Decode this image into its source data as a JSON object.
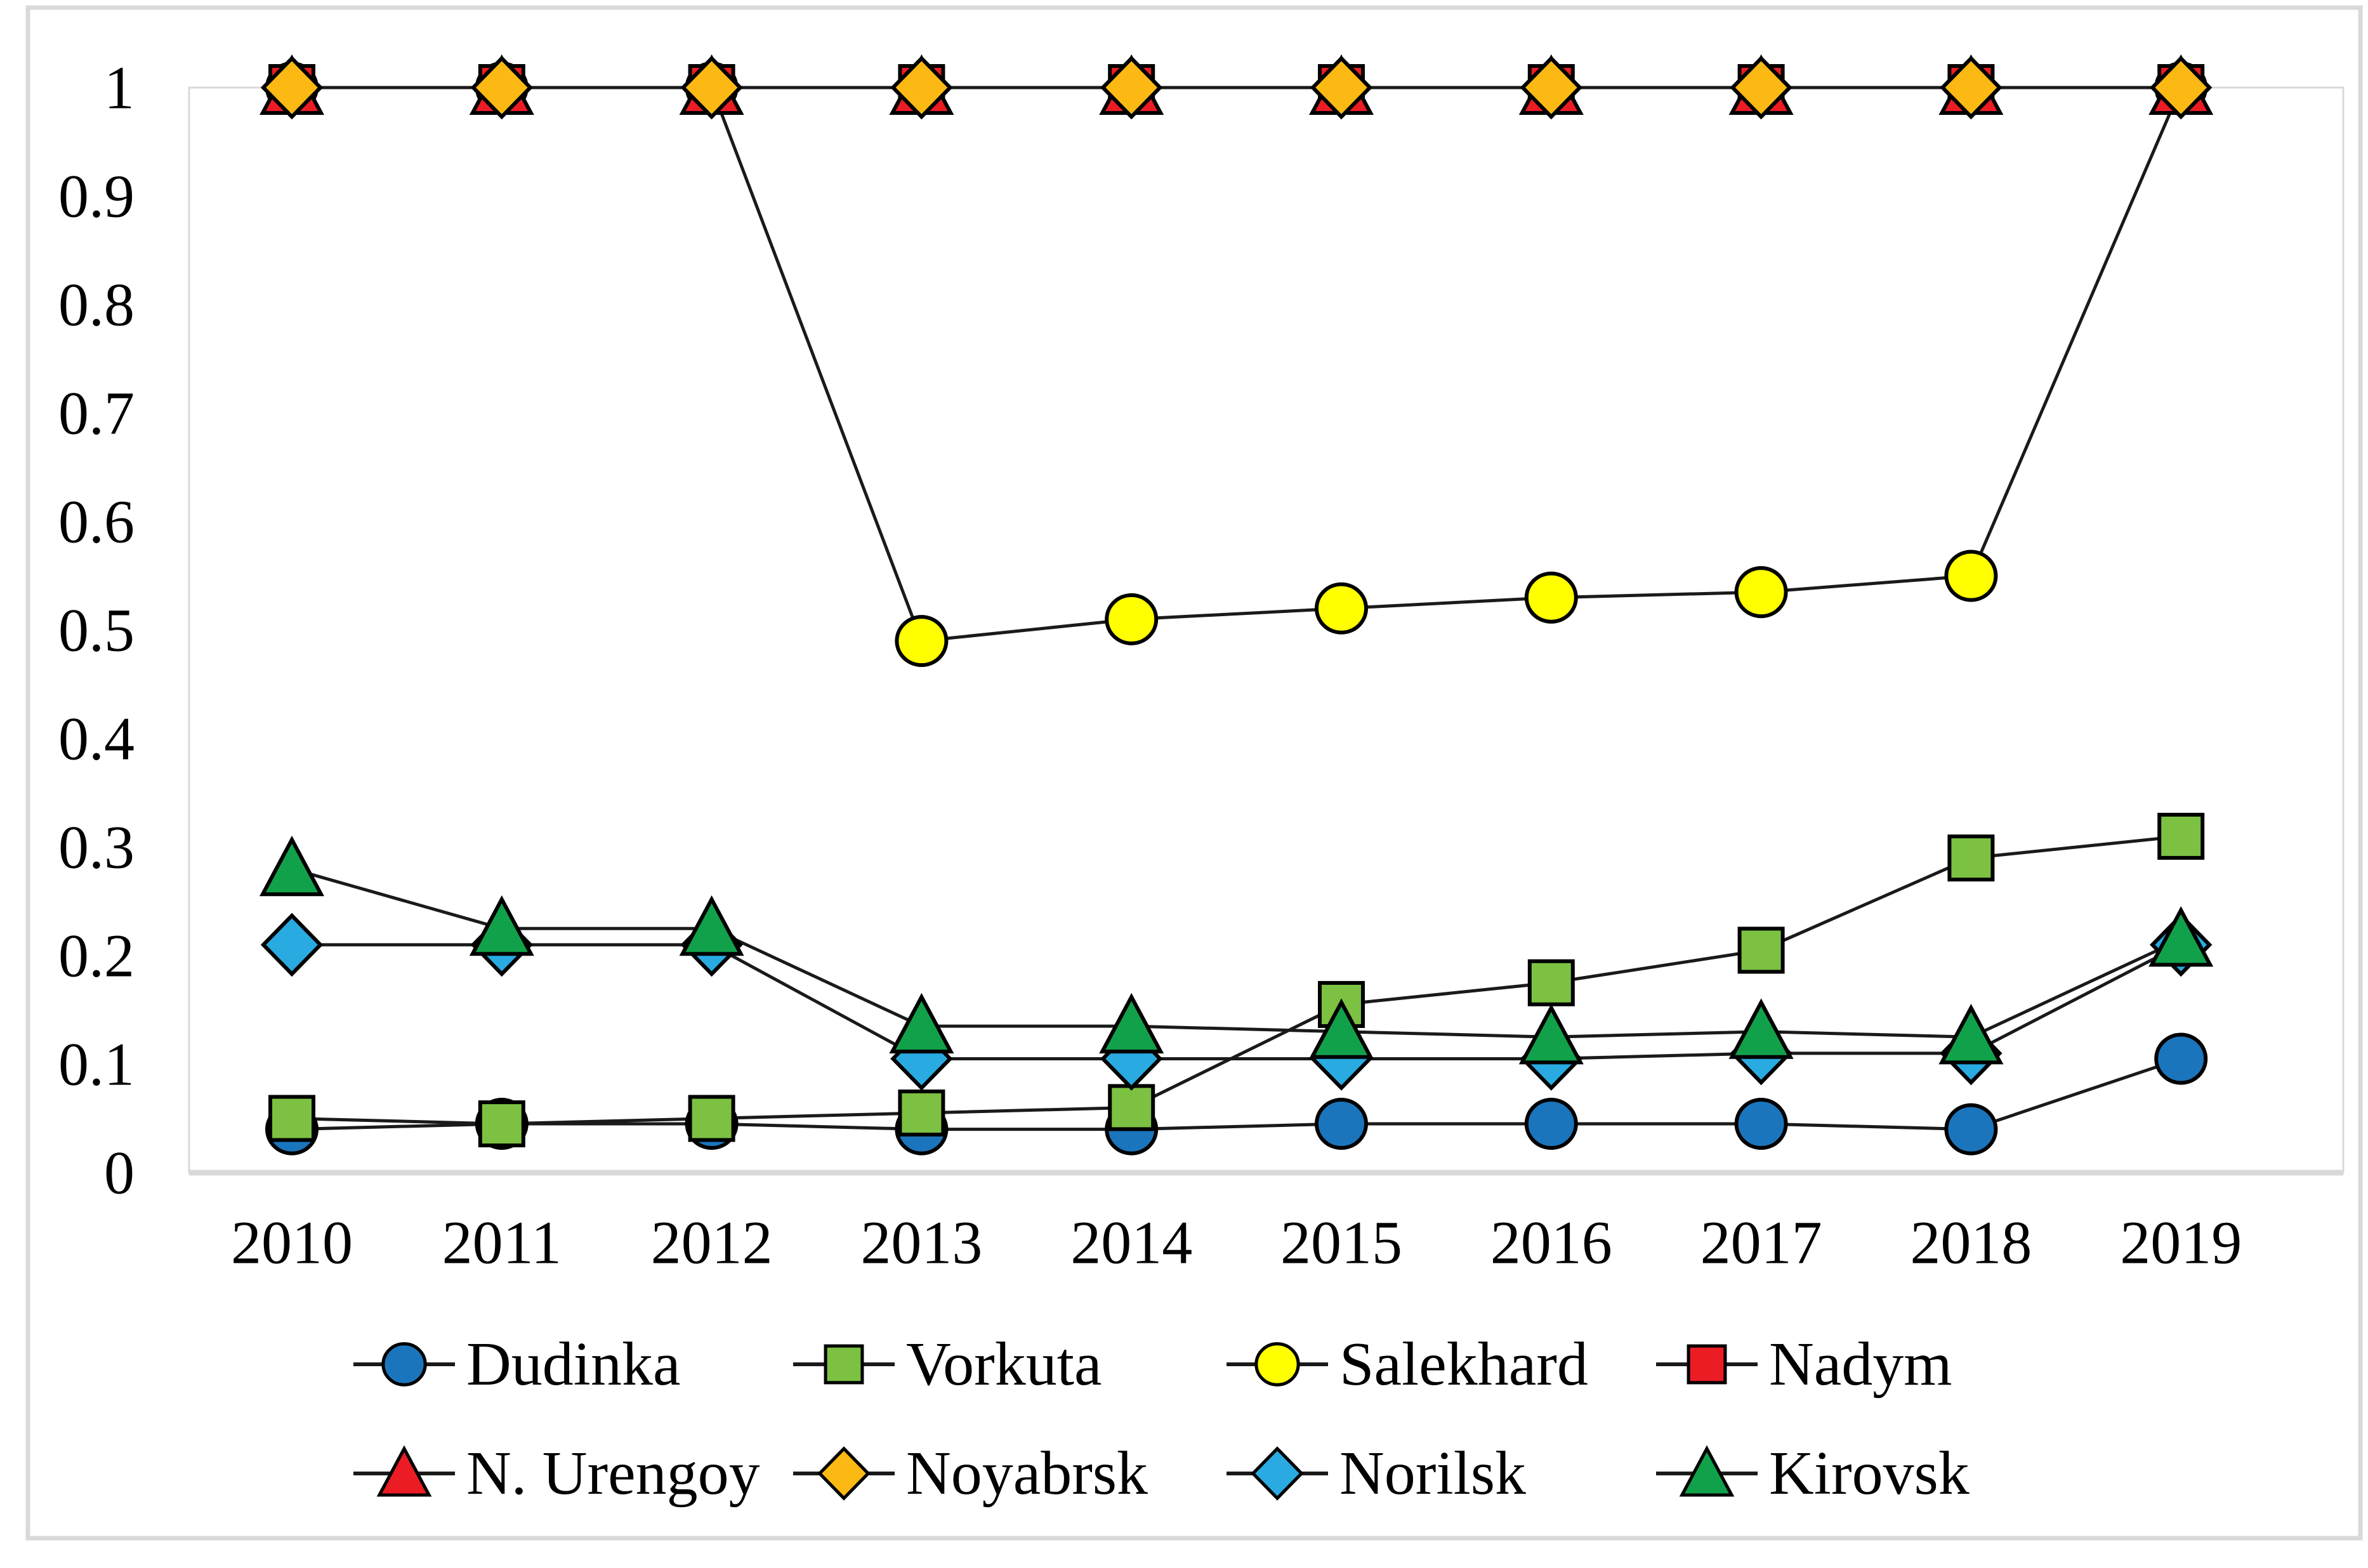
{
  "figure": {
    "background": "#FFFFFF",
    "frame_color": "#D9D9D9",
    "plot_border_color": "#D9D9D9",
    "line_color": "#1A1A1A",
    "text_color": "#000000"
  },
  "chart_data": {
    "type": "line",
    "title": "",
    "xlabel": "",
    "ylabel": "",
    "ylim": [
      0,
      1
    ],
    "y_tick_step": 0.1,
    "grid": false,
    "legend_position": "bottom",
    "x_categories": [
      "2010",
      "2011",
      "2012",
      "2013",
      "2014",
      "2015",
      "2016",
      "2017",
      "2018",
      "2019"
    ],
    "y_ticks": [
      "1",
      "0.9",
      "0.8",
      "0.7",
      "0.6",
      "0.5",
      "0.4",
      "0.3",
      "0.2",
      "0.1",
      "0"
    ],
    "series": [
      {
        "name": "Dudinka",
        "marker": "circle",
        "color": "#1B75BC",
        "values": [
          0.04,
          0.045,
          0.045,
          0.04,
          0.04,
          0.045,
          0.045,
          0.045,
          0.04,
          0.105
        ]
      },
      {
        "name": "Vorkuta",
        "marker": "square",
        "color": "#7CC142",
        "values": [
          0.05,
          0.045,
          0.05,
          0.055,
          0.06,
          0.155,
          0.175,
          0.205,
          0.29,
          0.31
        ]
      },
      {
        "name": "Salekhard",
        "marker": "circle",
        "color": "#FFFF00",
        "values": [
          1,
          1,
          1,
          0.49,
          0.51,
          0.52,
          0.53,
          0.535,
          0.55,
          1
        ]
      },
      {
        "name": "Nadym",
        "marker": "square",
        "color": "#EC1C24",
        "values": [
          1,
          1,
          1,
          1,
          1,
          1,
          1,
          1,
          1,
          1
        ]
      },
      {
        "name": "N. Urengoy",
        "marker": "triangle",
        "color": "#EC1C24",
        "values": [
          1,
          1,
          1,
          1,
          1,
          1,
          1,
          1,
          1,
          1
        ]
      },
      {
        "name": "Noyabrsk",
        "marker": "diamond",
        "color": "#FDB913",
        "values": [
          1,
          1,
          1,
          1,
          1,
          1,
          1,
          1,
          1,
          1
        ]
      },
      {
        "name": "Norilsk",
        "marker": "diamond",
        "color": "#29ABE2",
        "values": [
          0.21,
          0.21,
          0.21,
          0.105,
          0.105,
          0.105,
          0.105,
          0.11,
          0.11,
          0.21
        ]
      },
      {
        "name": "Kirovsk",
        "marker": "triangle",
        "color": "#12A14B",
        "values": [
          0.28,
          0.225,
          0.225,
          0.135,
          0.135,
          0.13,
          0.125,
          0.13,
          0.125,
          0.215
        ]
      }
    ]
  },
  "legend": {
    "rows": [
      [
        "Dudinka",
        "Vorkuta",
        "Salekhard",
        "Nadym"
      ],
      [
        "N. Urengoy",
        "Noyabrsk",
        "Norilsk",
        "Kirovsk"
      ]
    ]
  }
}
